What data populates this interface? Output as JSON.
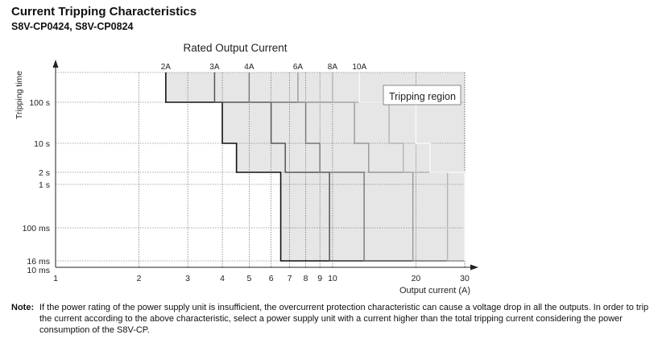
{
  "heading": "Current Tripping Characteristics",
  "subheading": "S8V-CP0424, S8V-CP0824",
  "note": {
    "label": "Note:",
    "text": "If the power rating of the power supply unit is insufficient, the overcurrent protection characteristic can cause a voltage drop in all the outputs. In order to trip the current according to the above characteristic, select a power supply unit with a current higher than the total tripping current considering the power consumption of the S8V-CP."
  },
  "chart_data": {
    "type": "line",
    "title": "Rated Output Current",
    "xlabel": "Output current (A)",
    "ylabel": "Tripping time",
    "xscale": "log",
    "yscale": "log",
    "xlim": [
      1,
      30
    ],
    "ylim": [
      "10 ms",
      "100 s+"
    ],
    "x_ticks": [
      1,
      2,
      3,
      4,
      5,
      6,
      7,
      8,
      9,
      10,
      20,
      30
    ],
    "x_tick_labels": [
      "1",
      "2",
      "3",
      "4",
      "5",
      "6",
      "7",
      "8",
      "9",
      "10",
      "20",
      "30"
    ],
    "y_tick_labels": [
      "100 s",
      "10 s",
      "2 s",
      "1 s",
      "100 ms",
      "16 ms",
      "10 ms"
    ],
    "grid": true,
    "annotation": "Tripping region",
    "series": [
      {
        "name": "2A",
        "rated": 2,
        "steps": [
          {
            "t": "100 s+",
            "x": 2.5
          },
          {
            "t": "100 s",
            "x": 4
          },
          {
            "t": "10 s",
            "x": 4.5
          },
          {
            "t": "2 s",
            "x": 6.5
          },
          {
            "t": "16 ms",
            "x": 7
          }
        ]
      },
      {
        "name": "3A",
        "rated": 3,
        "steps": [
          {
            "t": "100 s+",
            "x": 3.75
          },
          {
            "t": "100 s",
            "x": 6
          },
          {
            "t": "10 s",
            "x": 6.75
          },
          {
            "t": "2 s",
            "x": 9.75
          },
          {
            "t": "16 ms",
            "x": 10.5
          }
        ]
      },
      {
        "name": "4A",
        "rated": 4,
        "steps": [
          {
            "t": "100 s+",
            "x": 5
          },
          {
            "t": "100 s",
            "x": 8
          },
          {
            "t": "10 s",
            "x": 9
          },
          {
            "t": "2 s",
            "x": 13
          },
          {
            "t": "16 ms",
            "x": 14
          }
        ]
      },
      {
        "name": "6A",
        "rated": 6,
        "steps": [
          {
            "t": "100 s+",
            "x": 7.5
          },
          {
            "t": "100 s",
            "x": 12
          },
          {
            "t": "10 s",
            "x": 13.5
          },
          {
            "t": "2 s",
            "x": 19.5
          },
          {
            "t": "16 ms",
            "x": 21
          }
        ]
      },
      {
        "name": "8A",
        "rated": 8,
        "steps": [
          {
            "t": "100 s+",
            "x": 10
          },
          {
            "t": "100 s",
            "x": 16
          },
          {
            "t": "10 s",
            "x": 18
          },
          {
            "t": "2 s",
            "x": 26
          },
          {
            "t": "16 ms",
            "x": 28
          }
        ]
      },
      {
        "name": "10A",
        "rated": 10,
        "steps": [
          {
            "t": "100 s+",
            "x": 12.5
          },
          {
            "t": "100 s",
            "x": 20
          },
          {
            "t": "10 s",
            "x": 22.5
          },
          {
            "t": "2 s",
            "x": 30
          },
          {
            "t": "16 ms",
            "x": 30
          }
        ]
      }
    ]
  }
}
